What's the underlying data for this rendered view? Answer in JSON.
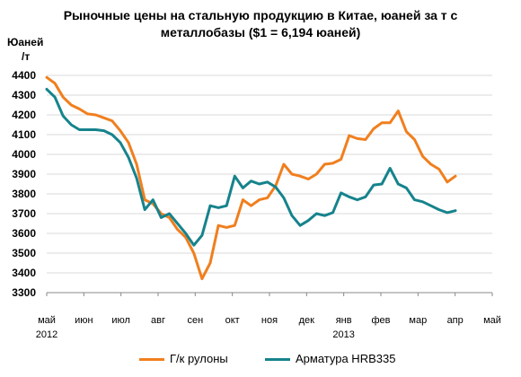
{
  "chart_data": {
    "type": "line",
    "title_line1": "Рыночные цены на стальную продукцию в Китае, юаней за т с",
    "title_line2": "металлобазы ($1 = 6,194 юаней)",
    "ylabel_line1": "Юаней",
    "ylabel_line2": "/т",
    "ylim": [
      3300,
      4400
    ],
    "yticks": [
      "3300",
      "3400",
      "3500",
      "3600",
      "3700",
      "3800",
      "3900",
      "4000",
      "4100",
      "4200",
      "4300",
      "4400"
    ],
    "xticks": [
      "май",
      "июн",
      "июл",
      "авг",
      "сен",
      "окт",
      "ноя",
      "дек",
      "янв",
      "фев",
      "мар",
      "апр",
      "май"
    ],
    "year_labels": [
      {
        "tick": "май",
        "year": "2012"
      },
      {
        "tick": "янв",
        "year": "2013"
      }
    ],
    "grid": true,
    "legend_position": "bottom",
    "series": [
      {
        "name": "Г/к рулоны",
        "color": "#f07f1e",
        "values": [
          4390,
          4360,
          4290,
          4250,
          4230,
          4205,
          4200,
          4185,
          4170,
          4120,
          4060,
          3950,
          3770,
          3750,
          3700,
          3680,
          3620,
          3580,
          3500,
          3370,
          3450,
          3640,
          3630,
          3640,
          3770,
          3740,
          3770,
          3780,
          3840,
          3950,
          3900,
          3890,
          3875,
          3900,
          3950,
          3955,
          3975,
          4095,
          4080,
          4075,
          4130,
          4160,
          4160,
          4220,
          4115,
          4075,
          3990,
          3950,
          3925,
          3860,
          3890
        ]
      },
      {
        "name": "Арматура HRB335",
        "color": "#16838c",
        "values": [
          4330,
          4290,
          4195,
          4150,
          4125,
          4125,
          4125,
          4120,
          4100,
          4060,
          3985,
          3880,
          3720,
          3770,
          3680,
          3700,
          3650,
          3600,
          3540,
          3590,
          3740,
          3730,
          3740,
          3890,
          3830,
          3865,
          3850,
          3860,
          3835,
          3780,
          3690,
          3640,
          3665,
          3700,
          3690,
          3705,
          3805,
          3785,
          3770,
          3785,
          3845,
          3850,
          3930,
          3850,
          3830,
          3770,
          3760,
          3740,
          3720,
          3705,
          3715
        ]
      }
    ]
  }
}
